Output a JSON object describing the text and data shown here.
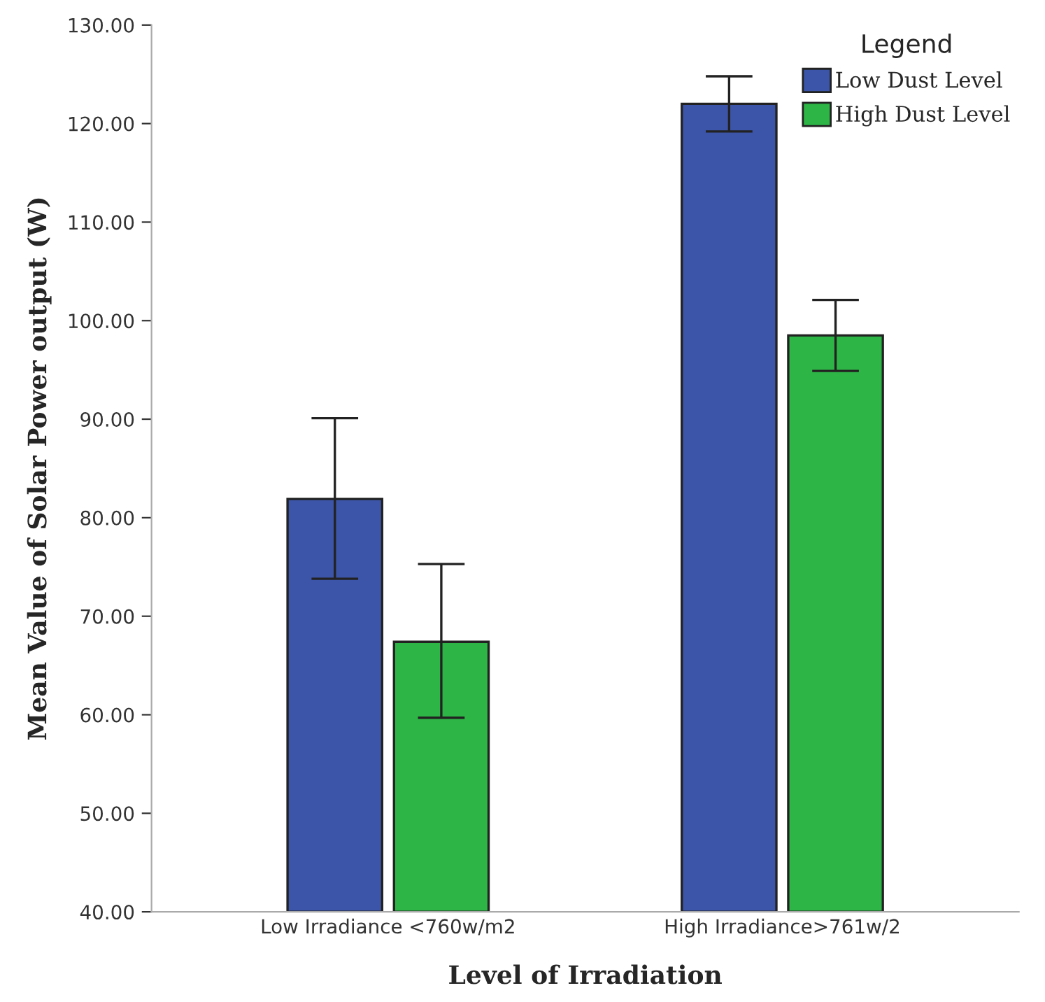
{
  "chart_data": {
    "type": "bar",
    "xlabel": "Level of Irradiation",
    "ylabel": "Mean Value of Solar Power output (W)",
    "legend_title": "Legend",
    "categories": [
      "Low Irradiance <760w/m2",
      "High Irradiance>761w/2"
    ],
    "series": [
      {
        "name": "Low Dust Level",
        "color": "#3c55a8",
        "values": [
          81.9,
          122.0
        ],
        "errors": [
          [
            73.8,
            90.1
          ],
          [
            119.2,
            124.8
          ]
        ]
      },
      {
        "name": "High Dust Level",
        "color": "#2db646",
        "values": [
          67.4,
          98.5
        ],
        "errors": [
          [
            59.7,
            75.3
          ],
          [
            94.9,
            102.1
          ]
        ]
      }
    ],
    "ylim": [
      40,
      130
    ],
    "yticks": [
      {
        "value": 40,
        "label": "40.00"
      },
      {
        "value": 50,
        "label": "50.00"
      },
      {
        "value": 60,
        "label": "60.00"
      },
      {
        "value": 70,
        "label": "70.00"
      },
      {
        "value": 80,
        "label": "80.00"
      },
      {
        "value": 90,
        "label": "90.00"
      },
      {
        "value": 100,
        "label": "100.00"
      },
      {
        "value": 110,
        "label": "110.00"
      },
      {
        "value": 120,
        "label": "120.00"
      },
      {
        "value": 130,
        "label": "130.00"
      }
    ],
    "grid": false,
    "legend": "top right"
  }
}
